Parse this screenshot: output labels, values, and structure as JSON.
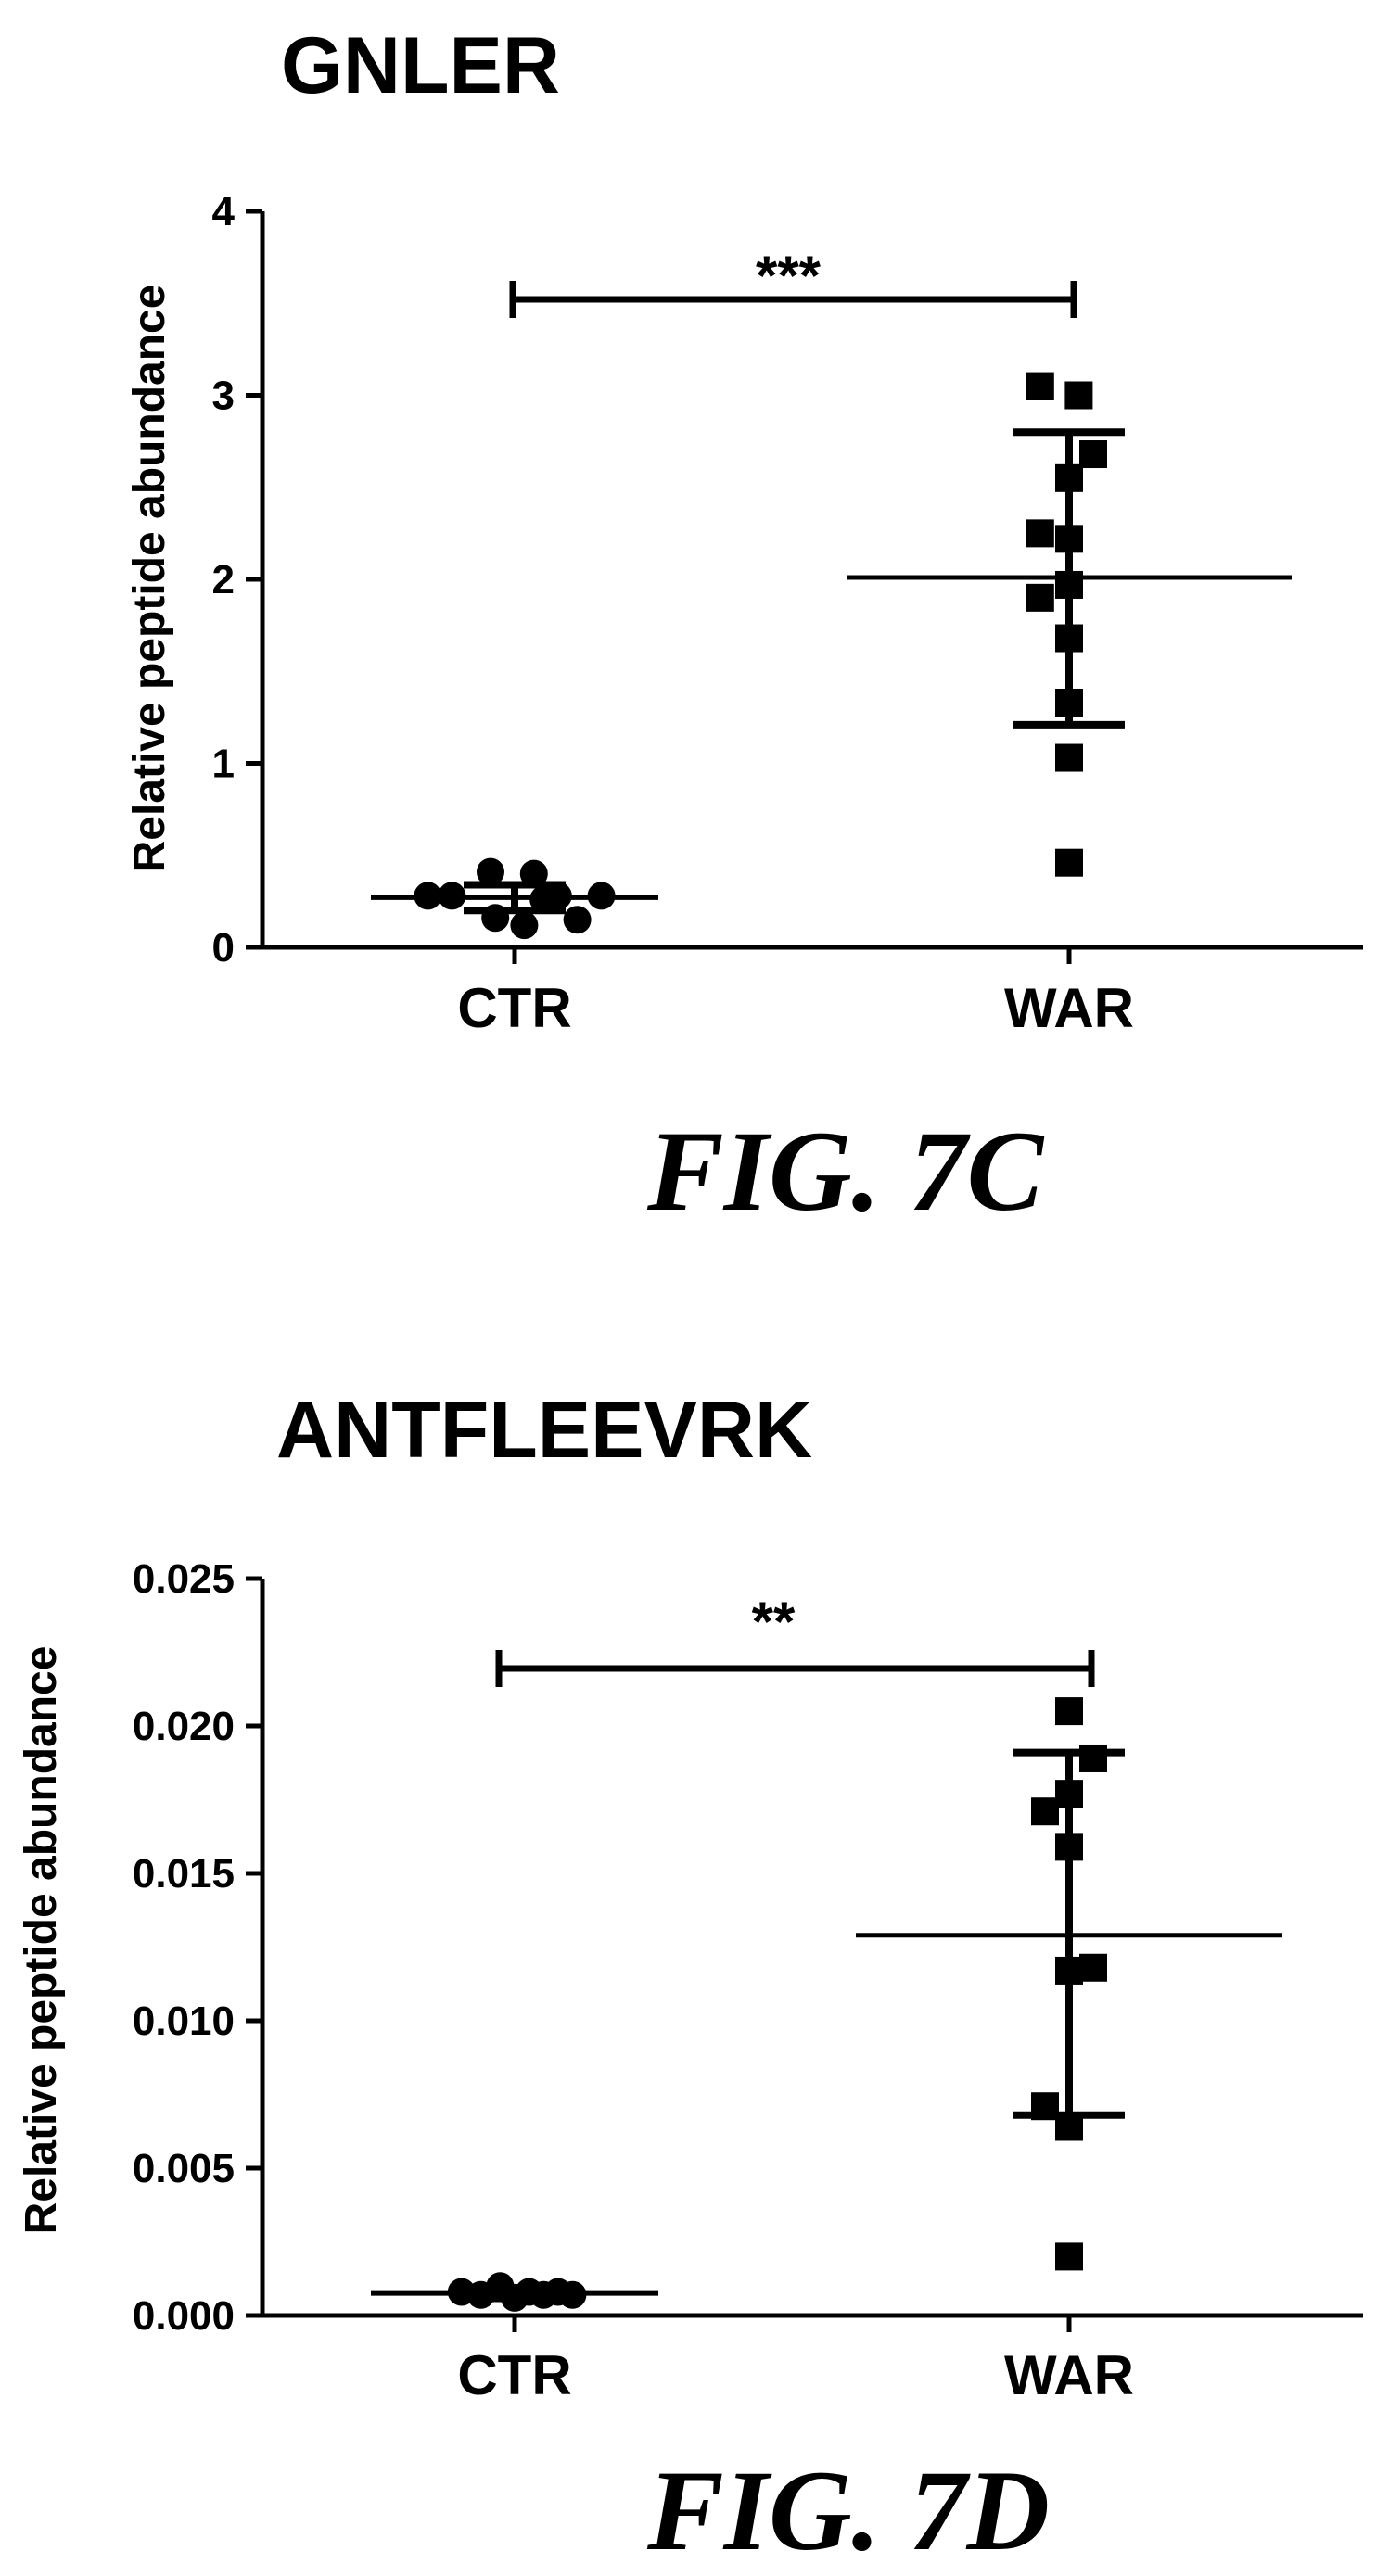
{
  "chart_data": [
    {
      "type": "scatter",
      "title": "GNLER",
      "figure_label": "FIG. 7C",
      "ylabel": "Relative peptide abundance",
      "ylim": [
        0,
        4
      ],
      "yticks": [
        "0",
        "1",
        "2",
        "3",
        "4"
      ],
      "categories": [
        "CTR",
        "WAR"
      ],
      "significance": "***",
      "groups": [
        {
          "name": "CTR",
          "marker": "circle",
          "points": [
            {
              "offset": -0.36,
              "value": 0.28
            },
            {
              "offset": -0.26,
              "value": 0.28
            },
            {
              "offset": -0.1,
              "value": 0.41
            },
            {
              "offset": -0.08,
              "value": 0.16
            },
            {
              "offset": 0.04,
              "value": 0.12
            },
            {
              "offset": 0.08,
              "value": 0.4
            },
            {
              "offset": 0.12,
              "value": 0.26
            },
            {
              "offset": 0.18,
              "value": 0.28
            },
            {
              "offset": 0.26,
              "value": 0.15
            },
            {
              "offset": 0.36,
              "value": 0.28
            }
          ],
          "mean": 0.27,
          "sd_low": 0.2,
          "sd_high": 0.34
        },
        {
          "name": "WAR",
          "marker": "square",
          "points": [
            {
              "offset": -0.12,
              "value": 3.05
            },
            {
              "offset": 0.04,
              "value": 3.0
            },
            {
              "offset": 0.1,
              "value": 2.68
            },
            {
              "offset": 0.0,
              "value": 2.55
            },
            {
              "offset": -0.12,
              "value": 2.25
            },
            {
              "offset": 0.0,
              "value": 2.22
            },
            {
              "offset": 0.0,
              "value": 1.97
            },
            {
              "offset": -0.12,
              "value": 1.9
            },
            {
              "offset": 0.0,
              "value": 1.68
            },
            {
              "offset": 0.0,
              "value": 1.33
            },
            {
              "offset": 0.0,
              "value": 1.03
            },
            {
              "offset": 0.0,
              "value": 0.46
            }
          ],
          "mean": 2.01,
          "sd_low": 1.21,
          "sd_high": 2.8
        }
      ]
    },
    {
      "type": "scatter",
      "title": "ANTFLEEVRK",
      "figure_label": "FIG. 7D",
      "ylabel": "Relative peptide abundance",
      "ylim": [
        0,
        0.025
      ],
      "yticks": [
        "0.000",
        "0.005",
        "0.010",
        "0.015",
        "0.020",
        "0.025"
      ],
      "categories": [
        "CTR",
        "WAR"
      ],
      "significance": "**",
      "groups": [
        {
          "name": "CTR",
          "marker": "circle",
          "points": [
            {
              "offset": -0.22,
              "value": 0.0008
            },
            {
              "offset": -0.14,
              "value": 0.0007
            },
            {
              "offset": -0.06,
              "value": 0.001
            },
            {
              "offset": 0.0,
              "value": 0.0006
            },
            {
              "offset": 0.06,
              "value": 0.0008
            },
            {
              "offset": 0.12,
              "value": 0.0007
            },
            {
              "offset": 0.18,
              "value": 0.0008
            },
            {
              "offset": 0.24,
              "value": 0.0007
            }
          ],
          "mean": 0.00075,
          "sd_low": 0.00058,
          "sd_high": 0.00092
        },
        {
          "name": "WAR",
          "marker": "square",
          "points": [
            {
              "offset": 0.0,
              "value": 0.0205
            },
            {
              "offset": 0.1,
              "value": 0.0189
            },
            {
              "offset": 0.0,
              "value": 0.0177
            },
            {
              "offset": -0.1,
              "value": 0.0171
            },
            {
              "offset": 0.0,
              "value": 0.0159
            },
            {
              "offset": 0.0,
              "value": 0.0117
            },
            {
              "offset": 0.1,
              "value": 0.0118
            },
            {
              "offset": -0.1,
              "value": 0.0071
            },
            {
              "offset": 0.0,
              "value": 0.0064
            },
            {
              "offset": 0.0,
              "value": 0.002
            }
          ],
          "mean": 0.0129,
          "sd_low": 0.0068,
          "sd_high": 0.0191
        }
      ]
    }
  ]
}
